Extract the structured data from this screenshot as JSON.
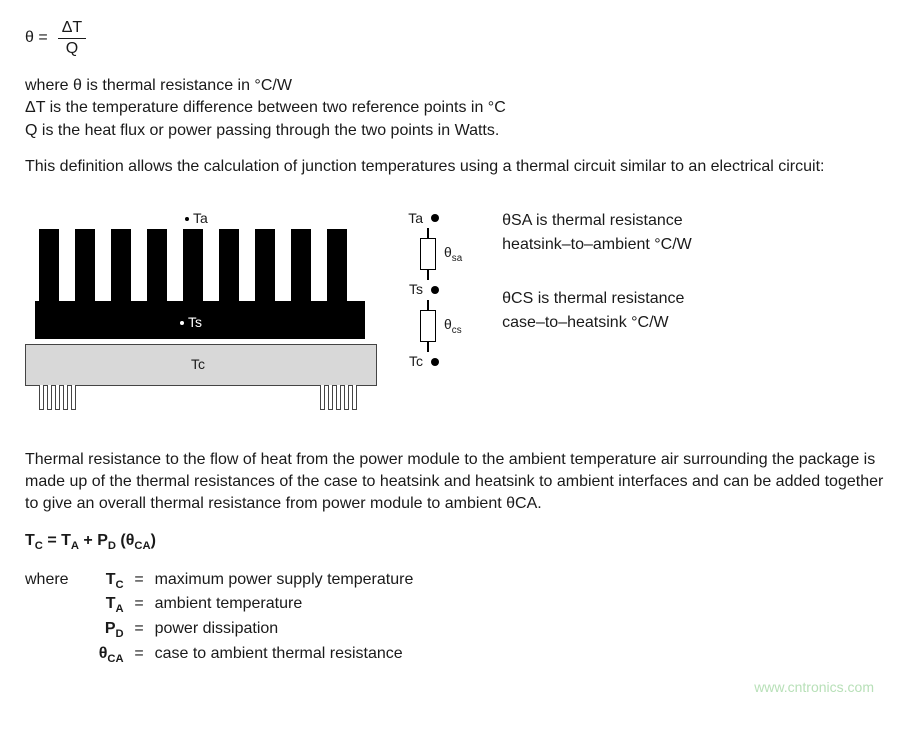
{
  "theta_symbol": "θ",
  "eq1_lhs": "θ =",
  "eq1_num": "ΔT",
  "eq1_den": "Q",
  "defs_intro1": "where θ is thermal resistance in °C/W",
  "defs_intro2": "ΔT is the temperature difference between two reference points in °C",
  "defs_intro3": "Q  is the heat flux or power passing through the two points in Watts.",
  "para1": "This definition allows the calculation of junction temperatures using a thermal circuit similar to an electrical circuit:",
  "heatsink": {
    "Ta": "Ta",
    "Ts": "Ts",
    "Tc": "Tc",
    "fin_color": "#000000",
    "module_color": "#d8d8d8"
  },
  "circuit": {
    "Ta": "Ta",
    "Ts": "Ts",
    "Tc": "Tc",
    "theta_sa": "θ",
    "sa_sub": "sa",
    "theta_cs": "θ",
    "cs_sub": "cs"
  },
  "desc1_line1": "θSA is thermal resistance",
  "desc1_line2": "heatsink–to–ambient °C/W",
  "desc2_line1": "θCS is thermal resistance",
  "desc2_line2": "case–to–heatsink °C/W",
  "para2": "Thermal resistance to the flow of heat from the power module to the ambient temperature air surrounding the package is made up of the thermal resistances of the case to heatsink and heatsink to ambient interfaces and can be added together to give an overall thermal resistance from power module to ambient θCA.",
  "eq2": "T",
  "eq2_c_sub": "C",
  "eq2_mid1": " = T",
  "eq2_a_sub": "A",
  "eq2_mid2": " + P",
  "eq2_d_sub": "D",
  "eq2_mid3": " (θ",
  "eq2_ca_sub": "CA",
  "eq2_end": ")",
  "where_label": "where",
  "final_defs": [
    {
      "sym": "T",
      "sub": "C",
      "eq": "=",
      "txt": "maximum power supply temperature"
    },
    {
      "sym": "T",
      "sub": "A",
      "eq": "=",
      "txt": "ambient temperature"
    },
    {
      "sym": "P",
      "sub": "D",
      "eq": "=",
      "txt": "power dissipation"
    },
    {
      "sym": "θ",
      "sub": "CA",
      "eq": "=",
      "txt": "case to ambient thermal resistance"
    }
  ],
  "watermark": "www.cntronics.com"
}
